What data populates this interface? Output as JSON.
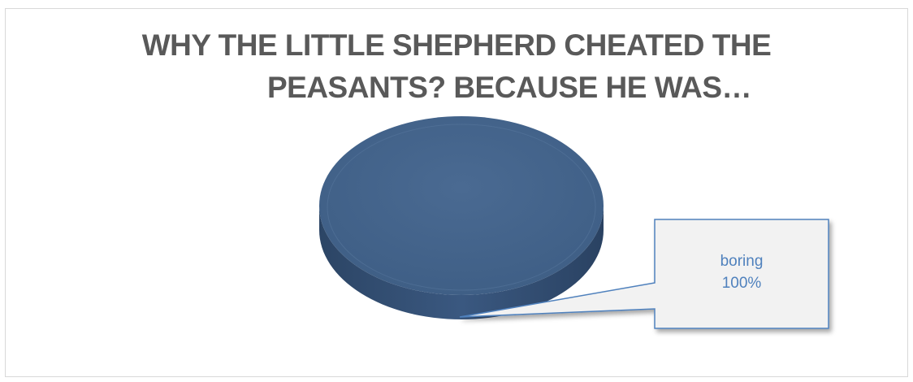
{
  "chart_data": {
    "type": "pie",
    "style": "3d",
    "title": "WHY THE LITTLE SHEPHERD CHEATED THE PEASANTS? BECAUSE HE WAS…",
    "title_lines": [
      "WHY THE LITTLE SHEPHERD CHEATED THE",
      "PEASANTS? BECAUSE HE WAS…"
    ],
    "categories": [
      "boring"
    ],
    "values": [
      100
    ],
    "data_labels": [
      {
        "category": "boring",
        "percent": "100%"
      }
    ],
    "colors": {
      "slice_top": "#44648a",
      "slice_side": "#2e4a6e",
      "callout_fill": "#f2f2f2",
      "callout_border": "#4f81bd",
      "label_text": "#4f81bd",
      "title_text": "#595959"
    },
    "legend": "none"
  }
}
